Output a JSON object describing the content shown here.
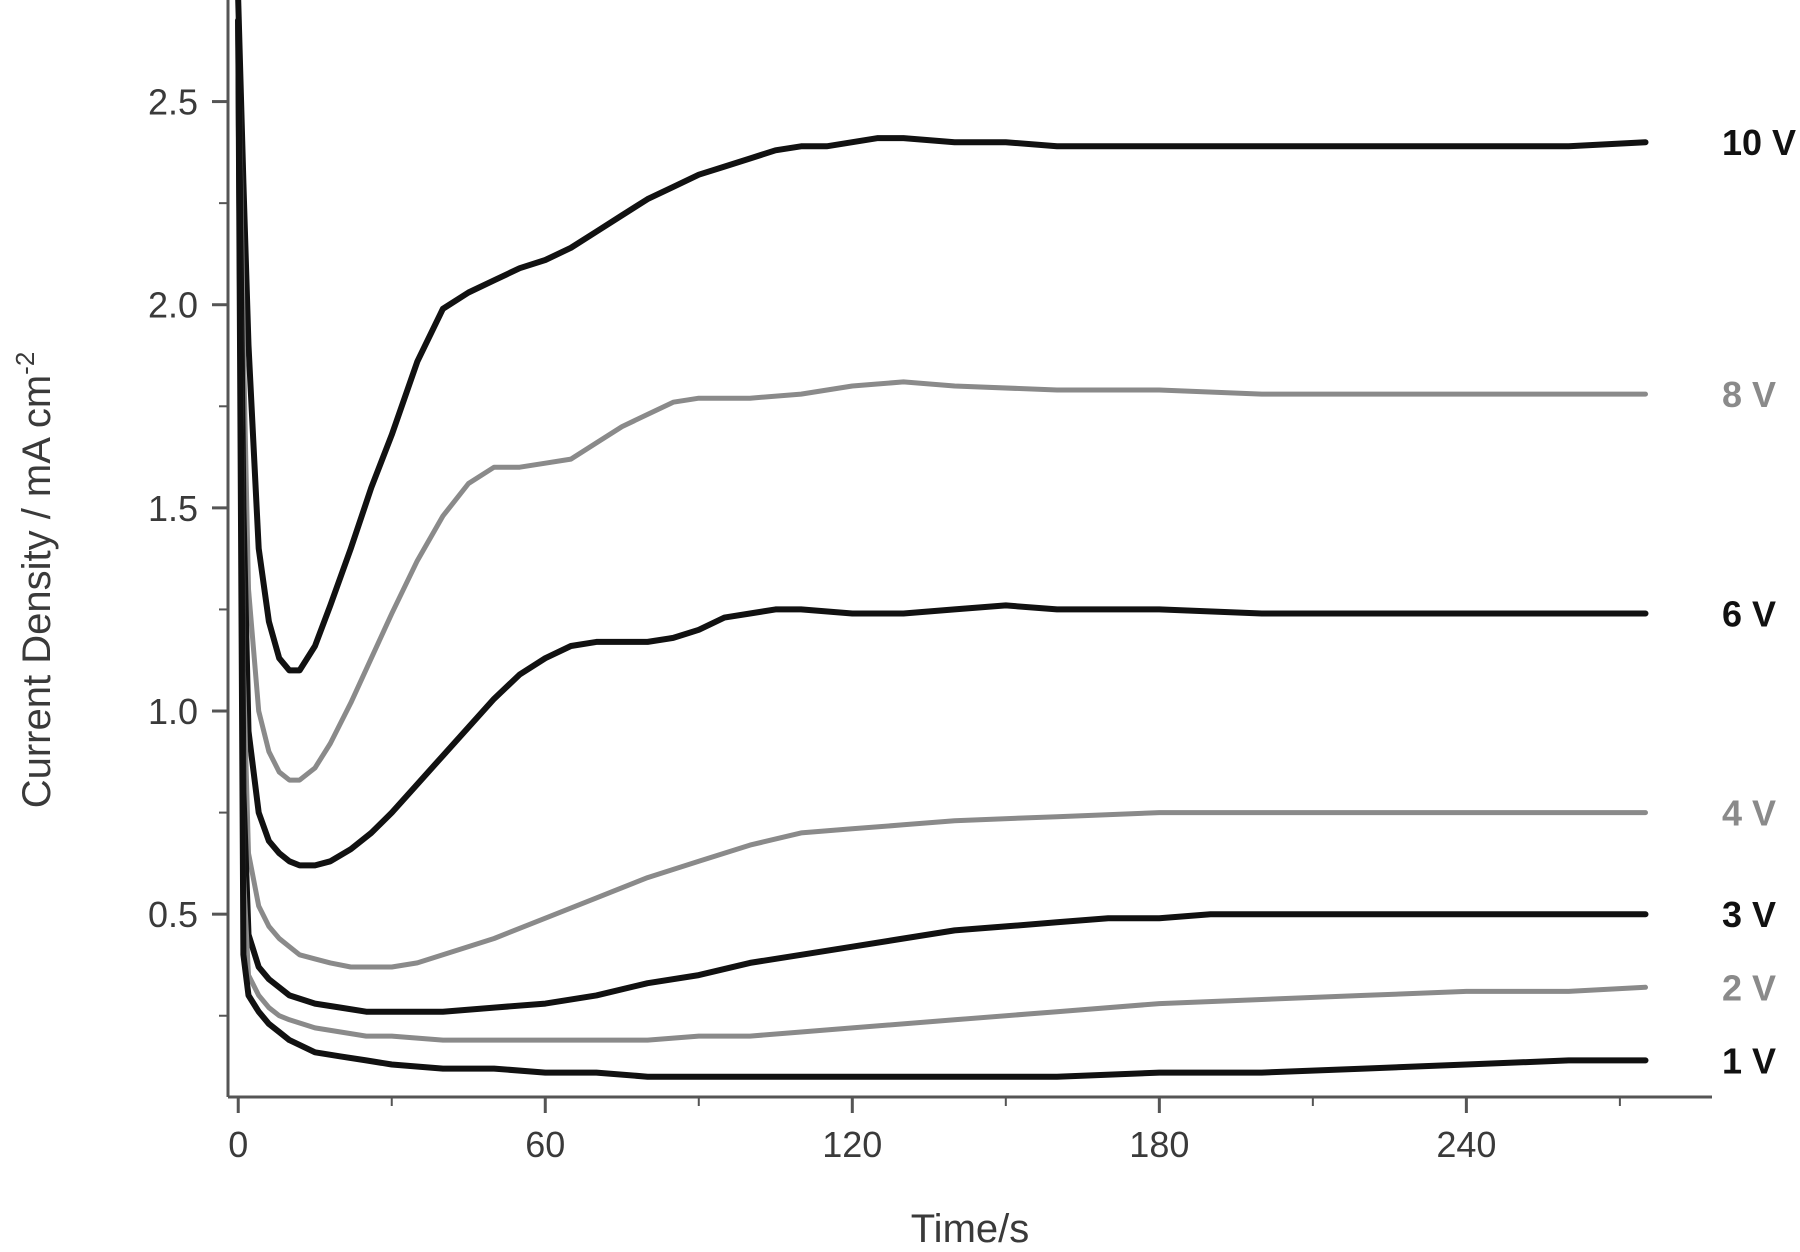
{
  "chart_data": {
    "type": "line",
    "xlabel": "Time/s",
    "ylabel": "Current Density / mA cm",
    "ylabel_superscript": "-2",
    "xlim": [
      -2,
      288
    ],
    "ylim": [
      0.05,
      2.75
    ],
    "x_ticks": [
      0,
      60,
      120,
      180,
      240
    ],
    "x_tick_labels": [
      "0",
      "60",
      "120",
      "180",
      "240"
    ],
    "x_minor_ticks": [
      30,
      90,
      150,
      210,
      270
    ],
    "y_ticks": [
      0.5,
      1.0,
      1.5,
      2.0,
      2.5
    ],
    "y_tick_labels": [
      "0.5",
      "1.0",
      "1.5",
      "2.0",
      "2.5"
    ],
    "y_minor_ticks": [
      0.25,
      0.75,
      1.25,
      1.75,
      2.25
    ],
    "grid": false,
    "legend": "inline labels at right end of each curve",
    "series": [
      {
        "name": "10 V",
        "color": "#111111",
        "x": [
          0,
          1,
          2,
          4,
          6,
          8,
          10,
          12,
          15,
          18,
          22,
          26,
          30,
          35,
          40,
          45,
          50,
          55,
          60,
          65,
          70,
          75,
          80,
          85,
          90,
          95,
          100,
          105,
          110,
          115,
          120,
          125,
          130,
          140,
          150,
          160,
          180,
          200,
          220,
          240,
          260,
          275
        ],
        "y": [
          2.75,
          2.3,
          1.9,
          1.4,
          1.22,
          1.13,
          1.1,
          1.1,
          1.16,
          1.26,
          1.4,
          1.55,
          1.68,
          1.86,
          1.99,
          2.03,
          2.06,
          2.09,
          2.11,
          2.14,
          2.18,
          2.22,
          2.26,
          2.29,
          2.32,
          2.34,
          2.36,
          2.38,
          2.39,
          2.39,
          2.4,
          2.41,
          2.41,
          2.4,
          2.4,
          2.39,
          2.39,
          2.39,
          2.39,
          2.39,
          2.39,
          2.4
        ]
      },
      {
        "name": "8 V",
        "color": "#8a8a8a",
        "x": [
          0,
          1,
          2,
          4,
          6,
          8,
          10,
          12,
          15,
          18,
          22,
          26,
          30,
          35,
          40,
          45,
          50,
          55,
          60,
          65,
          70,
          75,
          80,
          85,
          90,
          95,
          100,
          110,
          120,
          130,
          140,
          160,
          180,
          200,
          220,
          240,
          260,
          275
        ],
        "y": [
          2.7,
          1.9,
          1.3,
          1.0,
          0.9,
          0.85,
          0.83,
          0.83,
          0.86,
          0.92,
          1.02,
          1.13,
          1.24,
          1.37,
          1.48,
          1.56,
          1.6,
          1.6,
          1.61,
          1.62,
          1.66,
          1.7,
          1.73,
          1.76,
          1.77,
          1.77,
          1.77,
          1.78,
          1.8,
          1.81,
          1.8,
          1.79,
          1.79,
          1.78,
          1.78,
          1.78,
          1.78,
          1.78
        ]
      },
      {
        "name": "6 V",
        "color": "#111111",
        "x": [
          0,
          1,
          2,
          4,
          6,
          8,
          10,
          12,
          15,
          18,
          22,
          26,
          30,
          35,
          40,
          45,
          50,
          55,
          60,
          65,
          70,
          75,
          80,
          85,
          90,
          95,
          100,
          105,
          110,
          120,
          130,
          140,
          150,
          160,
          180,
          200,
          220,
          240,
          260,
          275
        ],
        "y": [
          2.7,
          1.5,
          0.95,
          0.75,
          0.68,
          0.65,
          0.63,
          0.62,
          0.62,
          0.63,
          0.66,
          0.7,
          0.75,
          0.82,
          0.89,
          0.96,
          1.03,
          1.09,
          1.13,
          1.16,
          1.17,
          1.17,
          1.17,
          1.18,
          1.2,
          1.23,
          1.24,
          1.25,
          1.25,
          1.24,
          1.24,
          1.25,
          1.26,
          1.25,
          1.25,
          1.24,
          1.24,
          1.24,
          1.24,
          1.24
        ]
      },
      {
        "name": "4 V",
        "color": "#8a8a8a",
        "x": [
          0,
          1,
          2,
          4,
          6,
          8,
          10,
          12,
          15,
          18,
          22,
          26,
          30,
          35,
          40,
          50,
          60,
          70,
          80,
          90,
          100,
          110,
          120,
          130,
          140,
          160,
          180,
          200,
          220,
          240,
          260,
          275
        ],
        "y": [
          2.7,
          1.1,
          0.65,
          0.52,
          0.47,
          0.44,
          0.42,
          0.4,
          0.39,
          0.38,
          0.37,
          0.37,
          0.37,
          0.38,
          0.4,
          0.44,
          0.49,
          0.54,
          0.59,
          0.63,
          0.67,
          0.7,
          0.71,
          0.72,
          0.73,
          0.74,
          0.75,
          0.75,
          0.75,
          0.75,
          0.75,
          0.75
        ]
      },
      {
        "name": "3 V",
        "color": "#111111",
        "x": [
          0,
          1,
          2,
          4,
          6,
          8,
          10,
          15,
          20,
          25,
          30,
          35,
          40,
          50,
          60,
          70,
          80,
          90,
          100,
          110,
          120,
          130,
          140,
          150,
          160,
          170,
          180,
          190,
          200,
          220,
          240,
          260,
          275
        ],
        "y": [
          2.7,
          0.8,
          0.45,
          0.37,
          0.34,
          0.32,
          0.3,
          0.28,
          0.27,
          0.26,
          0.26,
          0.26,
          0.26,
          0.27,
          0.28,
          0.3,
          0.33,
          0.35,
          0.38,
          0.4,
          0.42,
          0.44,
          0.46,
          0.47,
          0.48,
          0.49,
          0.49,
          0.5,
          0.5,
          0.5,
          0.5,
          0.5,
          0.5
        ]
      },
      {
        "name": "2 V",
        "color": "#8a8a8a",
        "x": [
          0,
          1,
          2,
          4,
          6,
          8,
          10,
          15,
          20,
          25,
          30,
          40,
          50,
          60,
          70,
          80,
          90,
          100,
          110,
          120,
          140,
          160,
          180,
          200,
          220,
          240,
          260,
          275
        ],
        "y": [
          2.7,
          0.6,
          0.35,
          0.3,
          0.27,
          0.25,
          0.24,
          0.22,
          0.21,
          0.2,
          0.2,
          0.19,
          0.19,
          0.19,
          0.19,
          0.19,
          0.2,
          0.2,
          0.21,
          0.22,
          0.24,
          0.26,
          0.28,
          0.29,
          0.3,
          0.31,
          0.31,
          0.32
        ]
      },
      {
        "name": "1 V",
        "color": "#111111",
        "x": [
          0,
          1,
          2,
          4,
          6,
          8,
          10,
          15,
          20,
          25,
          30,
          40,
          50,
          60,
          70,
          80,
          100,
          120,
          140,
          160,
          180,
          200,
          220,
          240,
          260,
          275
        ],
        "y": [
          2.7,
          0.4,
          0.3,
          0.26,
          0.23,
          0.21,
          0.19,
          0.16,
          0.15,
          0.14,
          0.13,
          0.12,
          0.12,
          0.11,
          0.11,
          0.1,
          0.1,
          0.1,
          0.1,
          0.1,
          0.11,
          0.11,
          0.12,
          0.13,
          0.14,
          0.14
        ]
      }
    ]
  }
}
